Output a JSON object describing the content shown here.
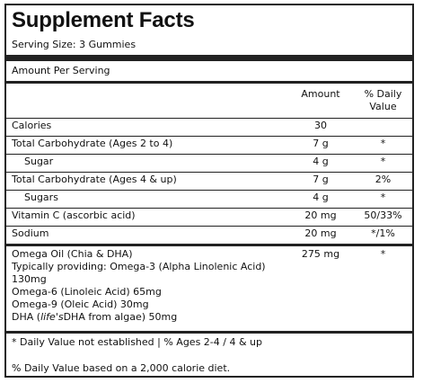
{
  "panel": {
    "title": "Supplement Facts",
    "serving_size": "Serving Size: 3 Gummies",
    "amount_per_serving": "Amount Per Serving",
    "header": {
      "amount": "Amount",
      "daily_value_line1": "% Daily",
      "daily_value_line2": "Value"
    },
    "rows": [
      {
        "name": "Calories",
        "amount": "30",
        "dv": ""
      },
      {
        "name": "Total Carbohydrate (Ages 2 to 4)",
        "amount": "7 g",
        "dv": "*"
      },
      {
        "name": "Sugar",
        "amount": "4 g",
        "dv": "*"
      },
      {
        "name": "Total Carbohydrate (Ages 4 & up)",
        "amount": "7 g",
        "dv": "2%"
      },
      {
        "name": "Sugars",
        "amount": "4 g",
        "dv": "*"
      },
      {
        "name": "Vitamin C (ascorbic acid)",
        "amount": "20 mg",
        "dv": "50/33%"
      },
      {
        "name": "Sodium",
        "amount": "20 mg",
        "dv": "*/1%"
      }
    ],
    "omega": {
      "line1": "Omega Oil (Chia & DHA)",
      "line2": "Typically providing: Omega-3 (Alpha Linolenic Acid)",
      "line3": "130mg",
      "line4": "Omega-6 (Linoleic Acid) 65mg",
      "line5": "Omega-9 (Oleic Acid) 30mg",
      "line6_prefix": "DHA (",
      "line6_italic": "life's",
      "line6_suffix": "DHA from algae) 50mg",
      "amount": "275 mg",
      "dv": "*"
    },
    "footnote1": "* Daily Value not established | % Ages 2-4 / 4 & up",
    "footnote2": "% Daily Value based on a 2,000 calorie diet."
  }
}
